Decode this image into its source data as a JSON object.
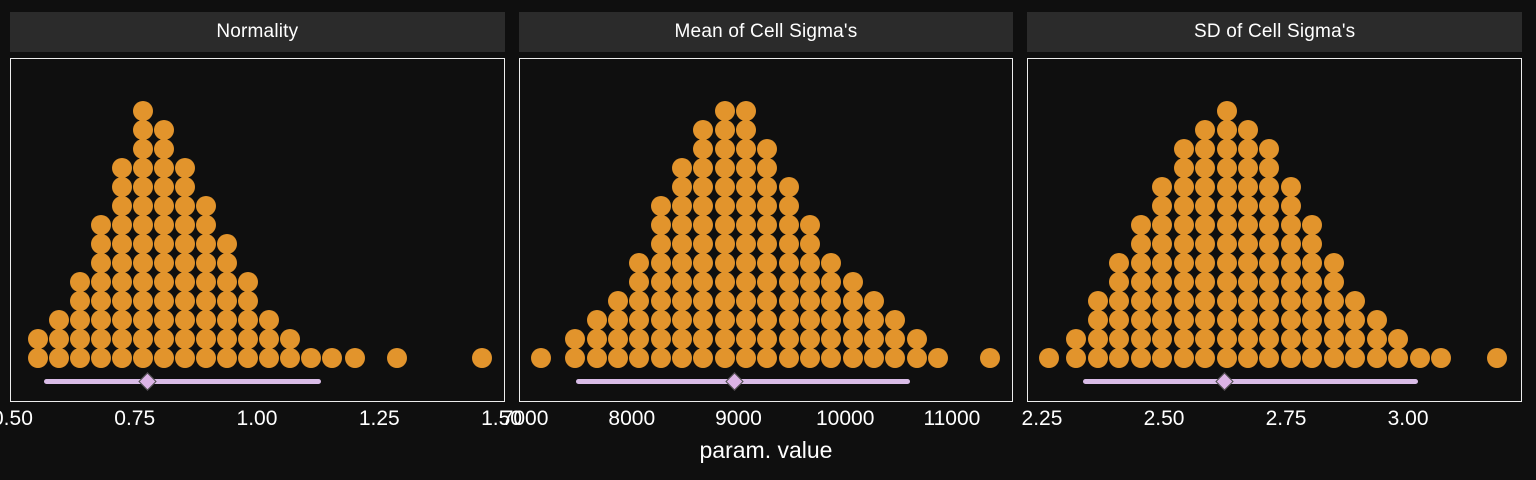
{
  "figure": {
    "xlabel": "param. value",
    "colors": {
      "dot": "#e2942c",
      "interval_line": "#d9bce7",
      "interval_point": "#dcb4e6",
      "background": "#0f0f0f",
      "header_bg": "#2b2b2b",
      "text": "#ffffff",
      "panel_border": "#ededed"
    }
  },
  "chart_data": [
    {
      "type": "dotplot",
      "title": "Normality",
      "xlim": [
        0.495,
        1.503
      ],
      "ticks": [
        0.5,
        0.75,
        1.0,
        1.25,
        1.5
      ],
      "tick_labels": [
        "0.50",
        "0.75",
        "1.00",
        "1.25",
        "1.50"
      ],
      "stacks": [
        {
          "x": 0.55,
          "n": 2
        },
        {
          "x": 0.593,
          "n": 3
        },
        {
          "x": 0.636,
          "n": 5
        },
        {
          "x": 0.679,
          "n": 8
        },
        {
          "x": 0.722,
          "n": 11
        },
        {
          "x": 0.765,
          "n": 14
        },
        {
          "x": 0.808,
          "n": 13
        },
        {
          "x": 0.851,
          "n": 11
        },
        {
          "x": 0.894,
          "n": 9
        },
        {
          "x": 0.937,
          "n": 7
        },
        {
          "x": 0.98,
          "n": 5
        },
        {
          "x": 1.023,
          "n": 3
        },
        {
          "x": 1.066,
          "n": 2
        },
        {
          "x": 1.109,
          "n": 1
        },
        {
          "x": 1.152,
          "n": 1
        },
        {
          "x": 1.198,
          "n": 1
        },
        {
          "x": 1.285,
          "n": 1
        },
        {
          "x": 1.458,
          "n": 1
        }
      ],
      "interval": {
        "lo": 0.562,
        "hi": 1.128,
        "point": 0.775
      }
    },
    {
      "type": "dotplot",
      "title": "Mean of Cell Sigma's",
      "xlim": [
        6940,
        11560
      ],
      "ticks": [
        7000,
        8000,
        9000,
        10000,
        11000
      ],
      "tick_labels": [
        "7000",
        "8000",
        "9000",
        "10000",
        "11000"
      ],
      "stacks": [
        {
          "x": 7140,
          "n": 1
        },
        {
          "x": 7460,
          "n": 2
        },
        {
          "x": 7660,
          "n": 3
        },
        {
          "x": 7860,
          "n": 4
        },
        {
          "x": 8060,
          "n": 6
        },
        {
          "x": 8260,
          "n": 9
        },
        {
          "x": 8460,
          "n": 11
        },
        {
          "x": 8660,
          "n": 13
        },
        {
          "x": 8860,
          "n": 14
        },
        {
          "x": 9060,
          "n": 14
        },
        {
          "x": 9260,
          "n": 12
        },
        {
          "x": 9460,
          "n": 10
        },
        {
          "x": 9660,
          "n": 8
        },
        {
          "x": 9860,
          "n": 6
        },
        {
          "x": 10060,
          "n": 5
        },
        {
          "x": 10260,
          "n": 4
        },
        {
          "x": 10460,
          "n": 3
        },
        {
          "x": 10660,
          "n": 2
        },
        {
          "x": 10860,
          "n": 1
        },
        {
          "x": 11350,
          "n": 1
        }
      ],
      "interval": {
        "lo": 7470,
        "hi": 10600,
        "point": 8950
      }
    },
    {
      "type": "dotplot",
      "title": "SD of Cell Sigma's",
      "xlim": [
        2.22,
        3.23
      ],
      "ticks": [
        2.25,
        2.5,
        2.75,
        3.0
      ],
      "tick_labels": [
        "2.25",
        "2.50",
        "2.75",
        "3.00"
      ],
      "stacks": [
        {
          "x": 2.262,
          "n": 1
        },
        {
          "x": 2.318,
          "n": 2
        },
        {
          "x": 2.362,
          "n": 4
        },
        {
          "x": 2.406,
          "n": 6
        },
        {
          "x": 2.45,
          "n": 8
        },
        {
          "x": 2.494,
          "n": 10
        },
        {
          "x": 2.538,
          "n": 12
        },
        {
          "x": 2.582,
          "n": 13
        },
        {
          "x": 2.626,
          "n": 14
        },
        {
          "x": 2.67,
          "n": 13
        },
        {
          "x": 2.714,
          "n": 12
        },
        {
          "x": 2.758,
          "n": 10
        },
        {
          "x": 2.802,
          "n": 8
        },
        {
          "x": 2.846,
          "n": 6
        },
        {
          "x": 2.89,
          "n": 4
        },
        {
          "x": 2.934,
          "n": 3
        },
        {
          "x": 2.978,
          "n": 2
        },
        {
          "x": 3.022,
          "n": 1
        },
        {
          "x": 3.066,
          "n": 1
        },
        {
          "x": 3.18,
          "n": 1
        }
      ],
      "interval": {
        "lo": 2.332,
        "hi": 3.018,
        "point": 2.622
      }
    }
  ]
}
